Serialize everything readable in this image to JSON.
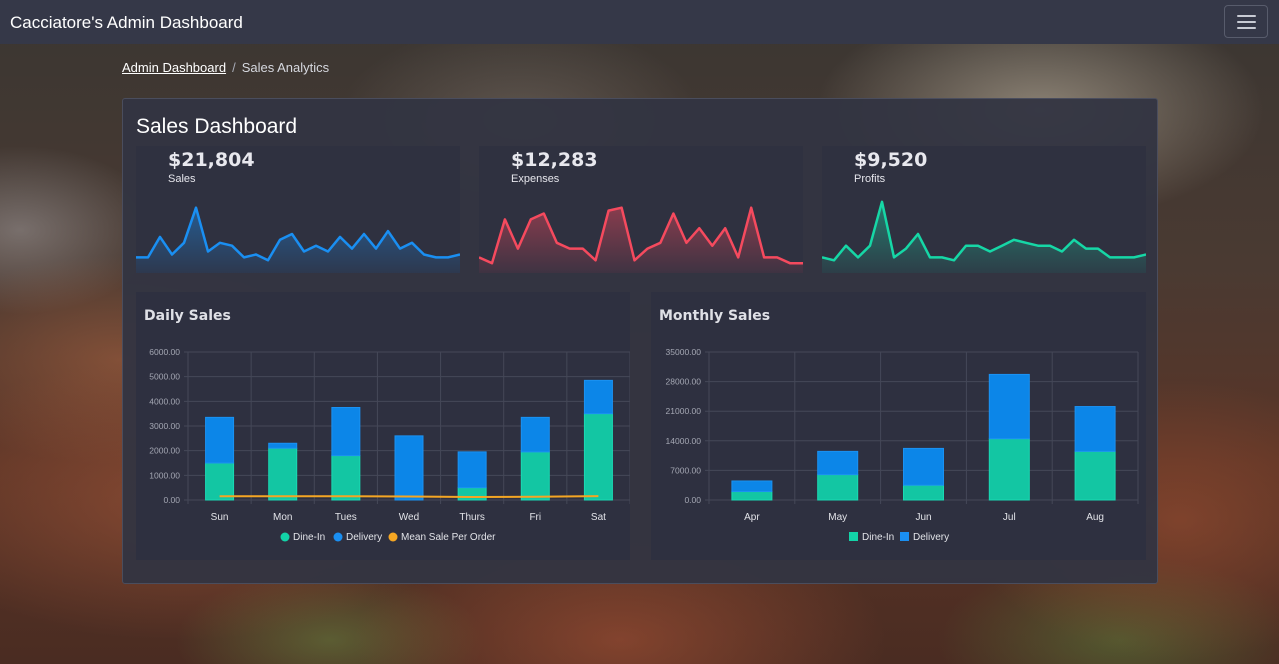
{
  "navbar": {
    "brand": "Cacciatore's Admin Dashboard"
  },
  "breadcrumb": {
    "home": "Admin Dashboard",
    "current": "Sales Analytics"
  },
  "dashboard": {
    "title": "Sales Dashboard"
  },
  "colors": {
    "accent_blue": "#1a8ff2",
    "accent_red": "#f54a5e",
    "accent_green": "#16d7a6",
    "orange": "#f5a623"
  },
  "stats": [
    {
      "value": "$21,804",
      "label": "Sales"
    },
    {
      "value": "$12,283",
      "label": "Expenses"
    },
    {
      "value": "$9,520",
      "label": "Profits"
    }
  ],
  "chart_data": [
    {
      "id": "daily",
      "type": "bar",
      "title": "Daily Sales",
      "categories": [
        "Sun",
        "Mon",
        "Tues",
        "Wed",
        "Thurs",
        "Fri",
        "Sat"
      ],
      "ylim": [
        0,
        6000
      ],
      "ytick_labels": [
        "0.00",
        "1000.00",
        "2000.00",
        "3000.00",
        "4000.00",
        "5000.00",
        "6000.00"
      ],
      "series": [
        {
          "name": "Dine-In",
          "values": [
            1500,
            2100,
            1800,
            0,
            500,
            1950,
            3500
          ]
        },
        {
          "name": "Delivery",
          "values": [
            1850,
            200,
            1950,
            2600,
            1450,
            1400,
            1350
          ]
        },
        {
          "name": "Mean Sale Per Order",
          "type": "line",
          "values": [
            150,
            150,
            150,
            140,
            120,
            130,
            160
          ]
        }
      ],
      "legend": "bottom",
      "grid": true
    },
    {
      "id": "monthly",
      "type": "bar",
      "title": "Monthly Sales",
      "categories": [
        "Apr",
        "May",
        "Jun",
        "Jul",
        "Aug"
      ],
      "ylim": [
        0,
        35000
      ],
      "ytick_labels": [
        "0.00",
        "7000.00",
        "14000.00",
        "21000.00",
        "28000.00",
        "35000.00"
      ],
      "series": [
        {
          "name": "Dine-In",
          "values": [
            2000,
            6000,
            3500,
            14500,
            11500
          ]
        },
        {
          "name": "Delivery",
          "values": [
            2500,
            5500,
            8700,
            15200,
            10600
          ]
        }
      ],
      "legend": "bottom",
      "grid": true
    },
    {
      "id": "spark-sales",
      "type": "area",
      "values": [
        5,
        5,
        12,
        6,
        10,
        22,
        7,
        10,
        9,
        5,
        6,
        4,
        11,
        13,
        7,
        9,
        7,
        12,
        8,
        13,
        8,
        14,
        8,
        10,
        6,
        5,
        5,
        6
      ]
    },
    {
      "id": "spark-expenses",
      "type": "area",
      "values": [
        5,
        3,
        18,
        8,
        18,
        20,
        10,
        8,
        8,
        4,
        21,
        22,
        4,
        8,
        10,
        20,
        10,
        15,
        9,
        15,
        5,
        22,
        5,
        5,
        3,
        3
      ]
    },
    {
      "id": "spark-profits",
      "type": "area",
      "values": [
        5,
        4,
        9,
        5,
        9,
        24,
        5,
        8,
        13,
        5,
        5,
        4,
        9,
        9,
        7,
        9,
        11,
        10,
        9,
        9,
        7,
        11,
        8,
        8,
        5,
        5,
        5,
        6
      ]
    }
  ]
}
